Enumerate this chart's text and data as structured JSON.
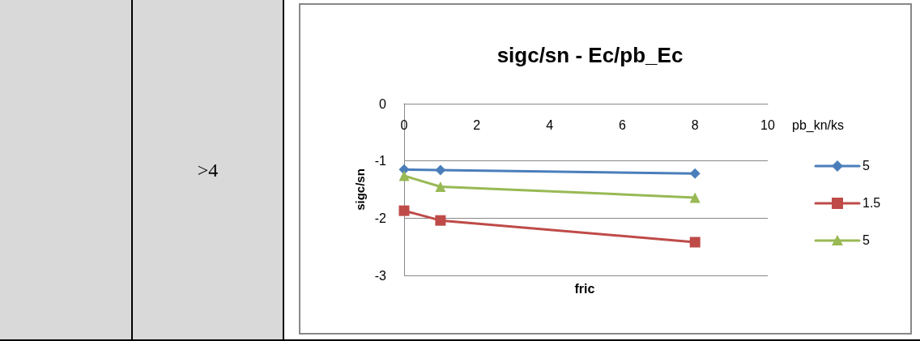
{
  "chart_data": {
    "type": "line",
    "title": "sigc/sn - Ec/pb_Ec",
    "xlabel": "fric",
    "ylabel": "sigc/sn",
    "legend_title": "pb_kn/ks",
    "legend": "right",
    "grid": "y",
    "annotations": [
      ">4"
    ],
    "x": [
      0,
      1,
      8
    ],
    "xlim": [
      0,
      10
    ],
    "xticks": [
      0,
      2,
      4,
      6,
      8,
      10
    ],
    "ylim": [
      -3,
      0
    ],
    "yticks": [
      -3,
      -2,
      -1,
      0
    ],
    "series": [
      {
        "name": "5",
        "color": "#4a7ebb",
        "marker": "diamond",
        "values": [
          -1.15,
          -1.16,
          -1.22
        ]
      },
      {
        "name": "1.5",
        "color": "#be4b48",
        "marker": "square",
        "values": [
          -1.87,
          -2.04,
          -2.42
        ]
      },
      {
        "name": "5",
        "color": "#98b954",
        "marker": "triangle",
        "values": [
          -1.26,
          -1.45,
          -1.64
        ]
      }
    ]
  }
}
